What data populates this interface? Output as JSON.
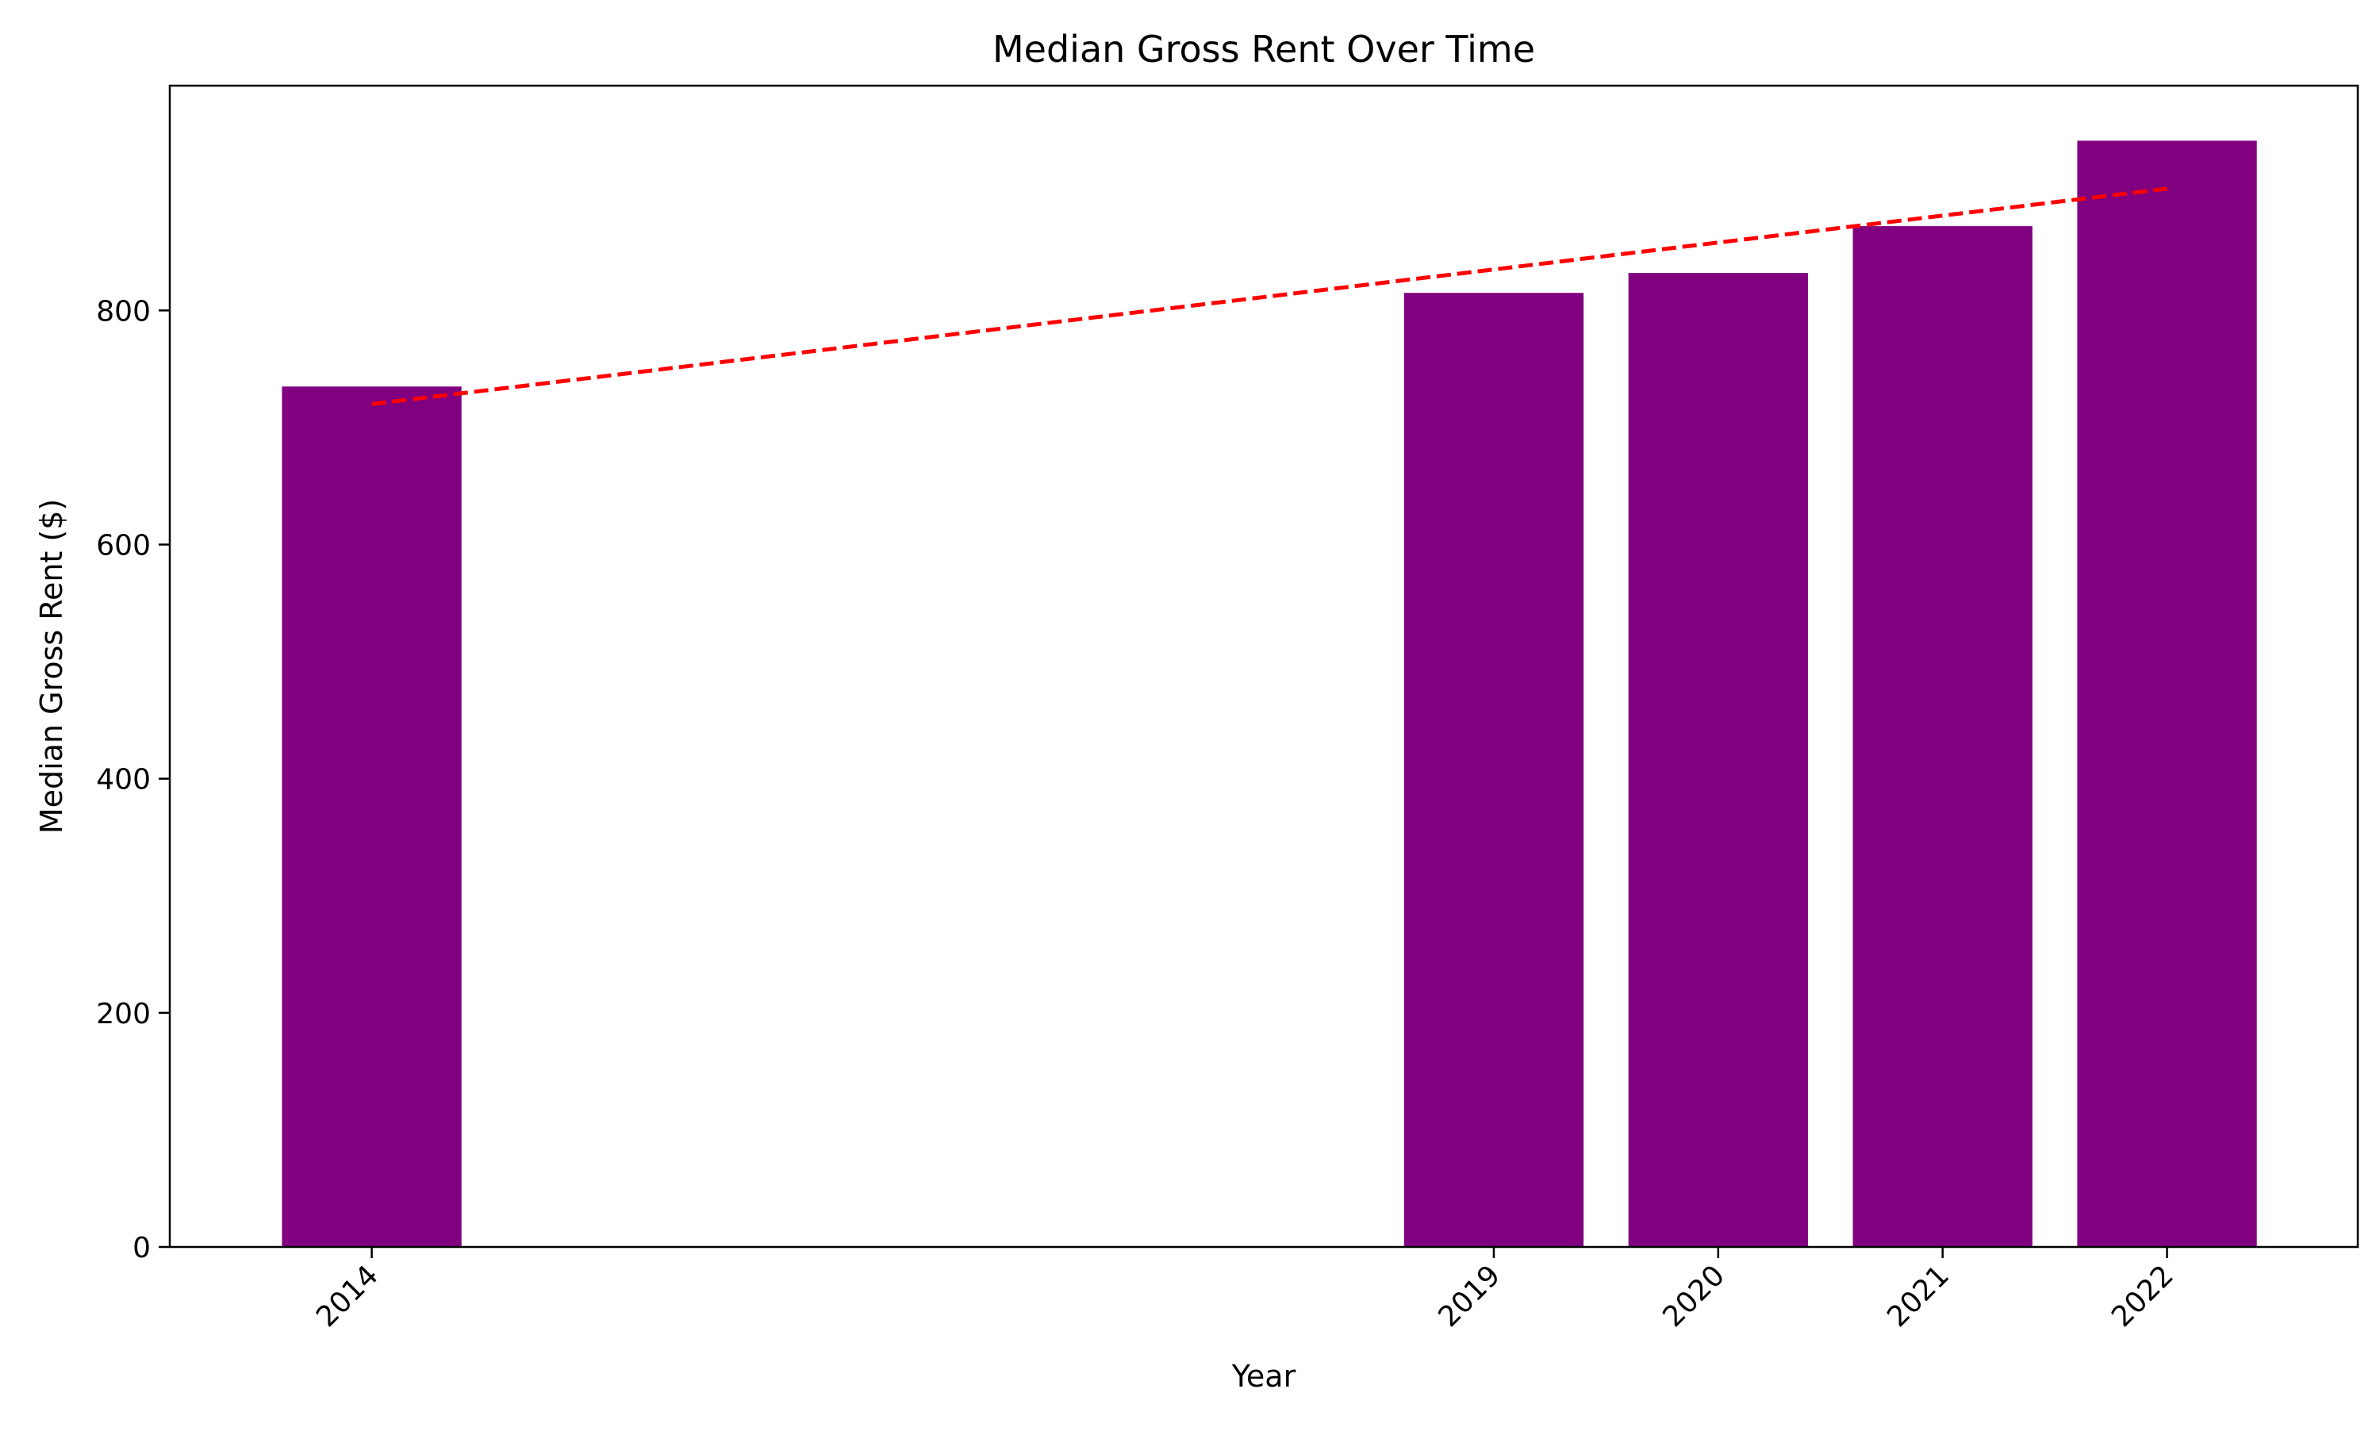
{
  "chart_data": {
    "type": "bar",
    "title": "Median Gross Rent Over Time",
    "xlabel": "Year",
    "ylabel": "Median Gross Rent ($)",
    "x": [
      2014,
      2019,
      2020,
      2021,
      2022
    ],
    "categories": [
      "2014",
      "2019",
      "2020",
      "2021",
      "2022"
    ],
    "values": [
      735,
      815,
      832,
      872,
      945
    ],
    "xlim": [
      2013.1,
      2022.85
    ],
    "ylim": [
      0,
      992
    ],
    "yticks": [
      0,
      200,
      400,
      600,
      800
    ],
    "bar_color": "#800080",
    "grid": false,
    "legend": "none",
    "trend_line": {
      "style": "dashed",
      "color": "#ff0000",
      "x": [
        2014,
        2022
      ],
      "y": [
        720,
        904
      ]
    }
  }
}
